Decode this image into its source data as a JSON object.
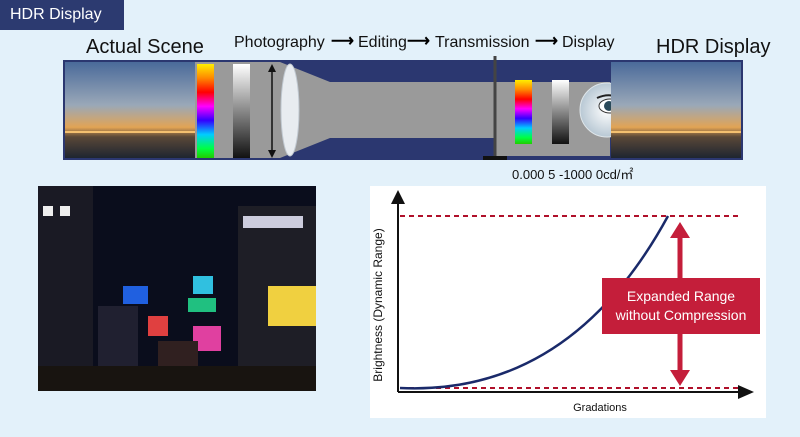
{
  "header": {
    "tag": "HDR Display"
  },
  "pipeline": {
    "left_title": "Actual Scene",
    "right_title": "HDR Display",
    "steps": [
      "Photography",
      "Editing",
      "Transmission",
      "Display"
    ],
    "luminance_range": "0.000 5 -1000 0cd/㎡"
  },
  "chart": {
    "ylabel": "Brightness (Dynamic Range)",
    "xlabel": "Gradations",
    "annotation_line1": "Expanded Range",
    "annotation_line2": "without Compression"
  },
  "colors": {
    "accent": "#c41e3a",
    "tag_bg": "#2c3a70",
    "tube": "#9a9a9a",
    "frame": "#2b3770"
  }
}
